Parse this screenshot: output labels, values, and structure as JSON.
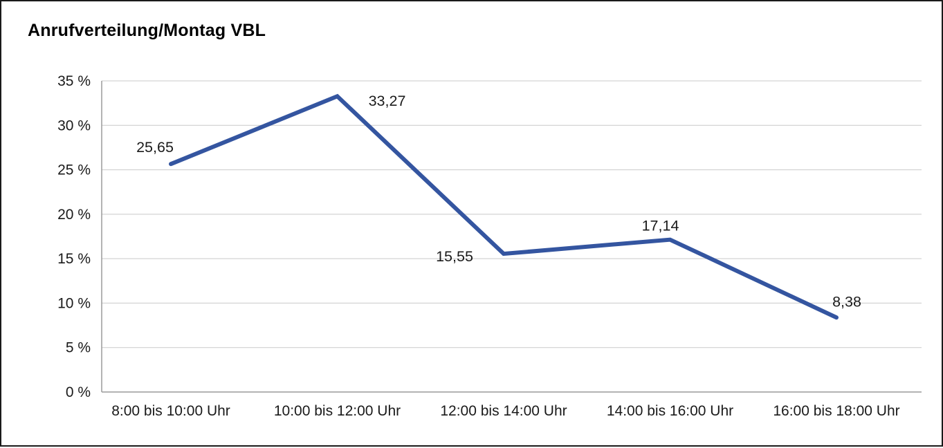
{
  "chart_data": {
    "type": "line",
    "title": "Anrufverteilung/Montag VBL",
    "categories": [
      "8:00 bis 10:00 Uhr",
      "10:00 bis 12:00 Uhr",
      "12:00 bis 14:00 Uhr",
      "14:00 bis 16:00 Uhr",
      "16:00 bis 18:00 Uhr"
    ],
    "values": [
      25.65,
      33.27,
      15.55,
      17.14,
      8.38
    ],
    "data_labels": [
      "25,65",
      "33,27",
      "15,55",
      "17,14",
      "8,38"
    ],
    "xlabel": "",
    "ylabel": "",
    "ylim": [
      0,
      35
    ],
    "ytick_step": 5,
    "ytick_suffix": " %",
    "ytick_labels": [
      "0 %",
      "5 %",
      "10 %",
      "15 %",
      "20 %",
      "25 %",
      "30 %",
      "35 %"
    ],
    "grid": "horizontal",
    "legend": "none",
    "line_color": "#3455a0",
    "grid_color": "#c9c9c9",
    "axis_color": "#9a9a9a",
    "text_color": "#1a1a1a"
  }
}
